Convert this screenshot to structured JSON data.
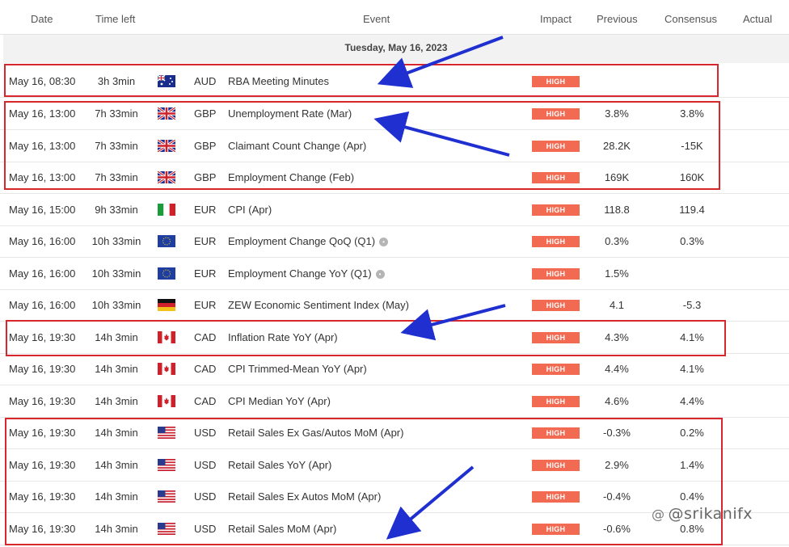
{
  "header": {
    "date": "Date",
    "time_left": "Time left",
    "event": "Event",
    "impact": "Impact",
    "previous": "Previous",
    "consensus": "Consensus",
    "actual": "Actual"
  },
  "day_label": "Tuesday, May 16, 2023",
  "rows": [
    {
      "date": "May 16, 08:30",
      "time_left": "3h 3min",
      "flag": "australia-flag-icon",
      "currency": "AUD",
      "event": "RBA Meeting Minutes",
      "impact": "HIGH",
      "previous": "",
      "consensus": ""
    },
    {
      "date": "May 16, 13:00",
      "time_left": "7h 33min",
      "flag": "uk-flag-icon",
      "currency": "GBP",
      "event": "Unemployment Rate (Mar)",
      "impact": "HIGH",
      "previous": "3.8%",
      "consensus": "3.8%"
    },
    {
      "date": "May 16, 13:00",
      "time_left": "7h 33min",
      "flag": "uk-flag-icon",
      "currency": "GBP",
      "event": "Claimant Count Change (Apr)",
      "impact": "HIGH",
      "previous": "28.2K",
      "consensus": "-15K"
    },
    {
      "date": "May 16, 13:00",
      "time_left": "7h 33min",
      "flag": "uk-flag-icon",
      "currency": "GBP",
      "event": "Employment Change (Feb)",
      "impact": "HIGH",
      "previous": "169K",
      "consensus": "160K"
    },
    {
      "date": "May 16, 15:00",
      "time_left": "9h 33min",
      "flag": "italy-flag-icon",
      "currency": "EUR",
      "event": "CPI (Apr)",
      "impact": "HIGH",
      "previous": "118.8",
      "consensus": "119.4"
    },
    {
      "date": "May 16, 16:00",
      "time_left": "10h 33min",
      "flag": "eu-flag-icon",
      "currency": "EUR",
      "event": "Employment Change QoQ (Q1)",
      "impact": "HIGH",
      "previous": "0.3%",
      "consensus": "0.3%"
    },
    {
      "date": "May 16, 16:00",
      "time_left": "10h 33min",
      "flag": "eu-flag-icon",
      "currency": "EUR",
      "event": "Employment Change YoY (Q1)",
      "impact": "HIGH",
      "previous": "1.5%",
      "consensus": ""
    },
    {
      "date": "May 16, 16:00",
      "time_left": "10h 33min",
      "flag": "germany-flag-icon",
      "currency": "EUR",
      "event": "ZEW Economic Sentiment Index (May)",
      "impact": "HIGH",
      "previous": "4.1",
      "consensus": "-5.3"
    },
    {
      "date": "May 16, 19:30",
      "time_left": "14h 3min",
      "flag": "canada-flag-icon",
      "currency": "CAD",
      "event": "Inflation Rate YoY (Apr)",
      "impact": "HIGH",
      "previous": "4.3%",
      "consensus": "4.1%"
    },
    {
      "date": "May 16, 19:30",
      "time_left": "14h 3min",
      "flag": "canada-flag-icon",
      "currency": "CAD",
      "event": "CPI Trimmed-Mean YoY (Apr)",
      "impact": "HIGH",
      "previous": "4.4%",
      "consensus": "4.1%"
    },
    {
      "date": "May 16, 19:30",
      "time_left": "14h 3min",
      "flag": "canada-flag-icon",
      "currency": "CAD",
      "event": "CPI Median YoY (Apr)",
      "impact": "HIGH",
      "previous": "4.6%",
      "consensus": "4.4%"
    },
    {
      "date": "May 16, 19:30",
      "time_left": "14h 3min",
      "flag": "usa-flag-icon",
      "currency": "USD",
      "event": "Retail Sales Ex Gas/Autos MoM (Apr)",
      "impact": "HIGH",
      "previous": "-0.3%",
      "consensus": "0.2%"
    },
    {
      "date": "May 16, 19:30",
      "time_left": "14h 3min",
      "flag": "usa-flag-icon",
      "currency": "USD",
      "event": "Retail Sales YoY (Apr)",
      "impact": "HIGH",
      "previous": "2.9%",
      "consensus": "1.4%"
    },
    {
      "date": "May 16, 19:30",
      "time_left": "14h 3min",
      "flag": "usa-flag-icon",
      "currency": "USD",
      "event": "Retail Sales Ex Autos MoM (Apr)",
      "impact": "HIGH",
      "previous": "-0.4%",
      "consensus": "0.4%"
    },
    {
      "date": "May 16, 19:30",
      "time_left": "14h 3min",
      "flag": "usa-flag-icon",
      "currency": "USD",
      "event": "Retail Sales MoM (Apr)",
      "impact": "HIGH",
      "previous": "-0.6%",
      "consensus": "0.8%"
    }
  ],
  "chat_icon_rows": [
    5,
    6
  ],
  "colors": {
    "impact_high": "#f26a52",
    "highlight_box": "#d7272d",
    "arrow": "#1f2fd0"
  },
  "watermark": "@srikanifx"
}
